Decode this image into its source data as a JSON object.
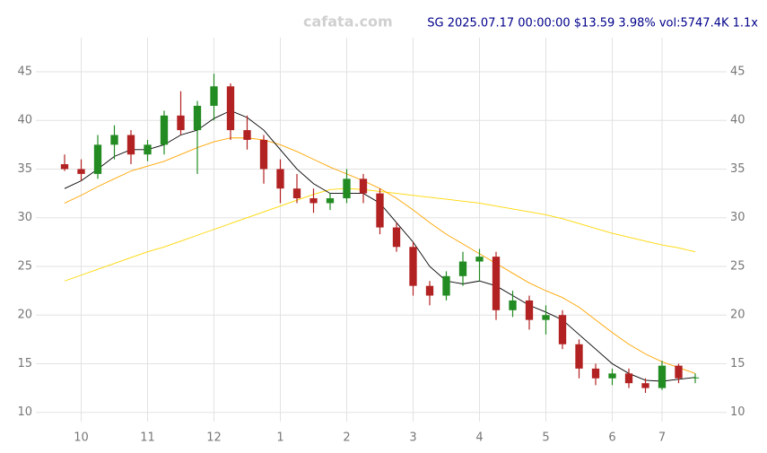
{
  "chart_data": {
    "type": "candlestick",
    "title": "SG 2025.07.17 00:00:00 $13.59 3.98% vol:5747.4K 1.1x",
    "watermark": "cafata.com",
    "categories": [
      null,
      "10",
      null,
      null,
      null,
      "11",
      null,
      null,
      null,
      "12",
      null,
      null,
      null,
      "1",
      null,
      null,
      null,
      "2",
      null,
      null,
      null,
      "3",
      null,
      null,
      null,
      "4",
      null,
      null,
      null,
      "5",
      null,
      null,
      null,
      "6",
      null,
      null,
      "7",
      null,
      null
    ],
    "open": [
      35.5,
      35,
      34.5,
      37.5,
      38.5,
      36.5,
      37.5,
      40.5,
      39,
      41.5,
      43.5,
      39,
      38,
      35,
      33,
      32,
      31.5,
      32,
      34,
      32.5,
      29,
      27,
      23,
      22,
      24,
      25.5,
      26,
      20.5,
      21.5,
      19.5,
      20,
      17,
      14.5,
      13.5,
      14,
      13,
      12.5,
      14.8,
      13.5
    ],
    "high": [
      36.5,
      36,
      38.5,
      39.5,
      39,
      38,
      41,
      43,
      42,
      44.8,
      43.8,
      40.5,
      38.5,
      36,
      34.5,
      33,
      32.5,
      35,
      34.5,
      33,
      29.5,
      27.5,
      23.5,
      24.5,
      26.5,
      26.8,
      26.5,
      22.5,
      22,
      21,
      20.5,
      17.5,
      15,
      14.5,
      14.5,
      13.5,
      15.3,
      15,
      14
    ],
    "low": [
      34.8,
      33.8,
      34,
      36,
      35.5,
      35.8,
      36.5,
      38.5,
      34.5,
      40,
      38,
      37,
      33.5,
      31.5,
      31.5,
      30.5,
      30.8,
      31.5,
      31.5,
      28.3,
      26.5,
      22,
      21,
      21.5,
      23,
      23.5,
      19.5,
      19.8,
      18.5,
      18,
      16.5,
      13.5,
      12.8,
      12.8,
      12.5,
      12,
      12.3,
      13,
      13
    ],
    "close": [
      35,
      34.5,
      37.5,
      38.5,
      36.5,
      37.5,
      40.5,
      39,
      41.5,
      43.5,
      39,
      38,
      35,
      33,
      32,
      31.5,
      32,
      34,
      32.5,
      29,
      27,
      23,
      22,
      24,
      25.5,
      26,
      20.5,
      21.5,
      19.5,
      20,
      17,
      14.5,
      13.5,
      14,
      13,
      12.5,
      14.8,
      13.5,
      13.59
    ],
    "up_color": "#228b22",
    "down_color": "#b22222",
    "overlays": [
      {
        "color": "#ffd700",
        "values": [
          23.5,
          24.1,
          24.7,
          25.3,
          25.9,
          26.5,
          27.0,
          27.6,
          28.2,
          28.8,
          29.4,
          30.0,
          30.6,
          31.2,
          31.8,
          32.4,
          32.9,
          33,
          32.9,
          32.7,
          32.5,
          32.3,
          32.1,
          31.9,
          31.7,
          31.5,
          31.2,
          30.9,
          30.6,
          30.3,
          29.9,
          29.4,
          28.9,
          28.4,
          28.0,
          27.6,
          27.2,
          26.9,
          26.5
        ]
      },
      {
        "color": "#ffa500",
        "values": [
          31.5,
          32.3,
          33.2,
          34,
          34.8,
          35.3,
          35.8,
          36.5,
          37.2,
          37.8,
          38.2,
          38.2,
          38,
          37.5,
          36.8,
          36,
          35.2,
          34.5,
          33.8,
          33,
          32,
          30.8,
          29.5,
          28.3,
          27.3,
          26.3,
          25.3,
          24.3,
          23.3,
          22.5,
          21.8,
          20.8,
          19.5,
          18.2,
          17,
          16,
          15.2,
          14.6,
          14
        ]
      },
      {
        "color": "#000000",
        "values": [
          33,
          33.8,
          35,
          36.3,
          37,
          37,
          37.5,
          38.5,
          39,
          40.2,
          41,
          40.3,
          39,
          37,
          35,
          33.5,
          32.5,
          32.5,
          32.5,
          31.5,
          29.5,
          27.5,
          25,
          23.5,
          23.2,
          23.5,
          23,
          22,
          21,
          20.3,
          19.5,
          18,
          16.5,
          15,
          14,
          13.3,
          13.2,
          13.4,
          13.6
        ]
      }
    ],
    "ylim": [
      8.5,
      48.5
    ],
    "yticks": [
      10,
      15,
      20,
      25,
      30,
      35,
      40,
      45
    ],
    "grid": true
  }
}
